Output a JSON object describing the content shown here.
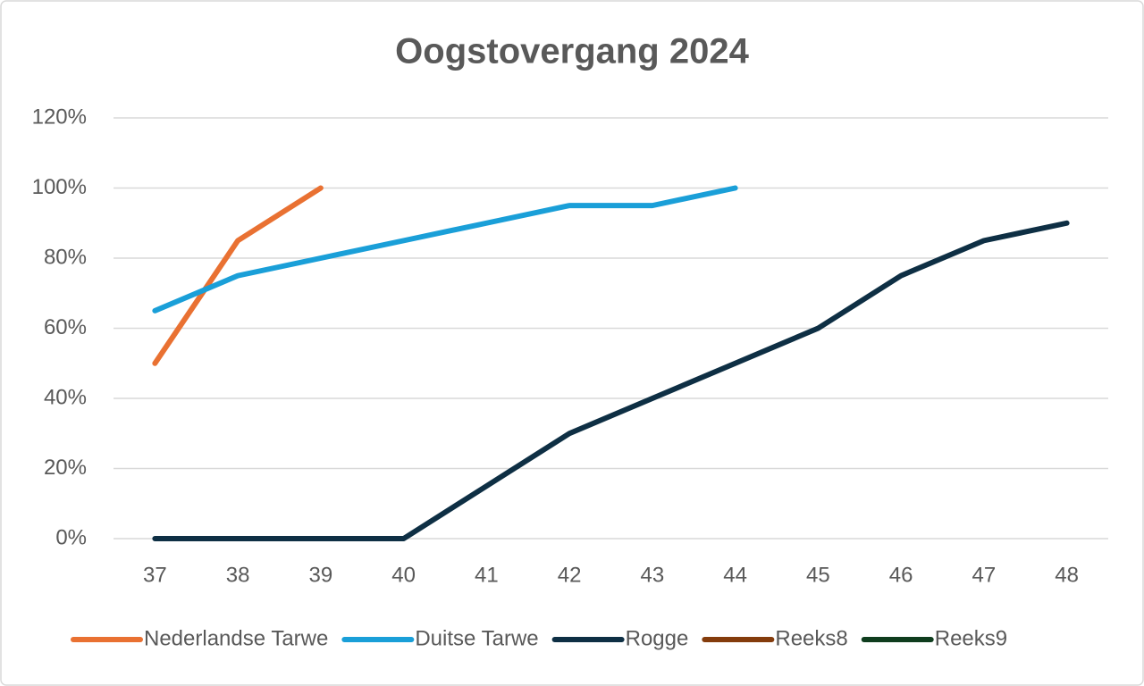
{
  "chart_data": {
    "type": "line",
    "title": "Oogstovergang 2024",
    "categories": [
      "37",
      "38",
      "39",
      "40",
      "41",
      "42",
      "43",
      "44",
      "45",
      "46",
      "47",
      "48"
    ],
    "series": [
      {
        "name": "Nederlandse Tarwe",
        "color": "#e97132",
        "values": [
          50,
          85,
          100,
          null,
          null,
          null,
          null,
          null,
          null,
          null,
          null,
          null
        ]
      },
      {
        "name": "Duitse Tarwe",
        "color": "#1a9fd8",
        "values": [
          65,
          75,
          80,
          85,
          90,
          95,
          95,
          100,
          null,
          null,
          null,
          null
        ]
      },
      {
        "name": "Rogge",
        "color": "#0e2f44",
        "values": [
          0,
          0,
          0,
          0,
          15,
          30,
          40,
          50,
          60,
          75,
          85,
          90
        ]
      },
      {
        "name": "Reeks8",
        "color": "#843c0c",
        "values": [
          null,
          null,
          null,
          null,
          null,
          null,
          null,
          null,
          null,
          null,
          null,
          null
        ]
      },
      {
        "name": "Reeks9",
        "color": "#0f3d1e",
        "values": [
          null,
          null,
          null,
          null,
          null,
          null,
          null,
          null,
          null,
          null,
          null,
          null
        ]
      }
    ],
    "ylim": [
      0,
      120
    ],
    "yticks": [
      {
        "value": 0,
        "label": "0%"
      },
      {
        "value": 20,
        "label": "20%"
      },
      {
        "value": 40,
        "label": "40%"
      },
      {
        "value": 60,
        "label": "60%"
      },
      {
        "value": 80,
        "label": "80%"
      },
      {
        "value": 100,
        "label": "100%"
      },
      {
        "value": 120,
        "label": "120%"
      }
    ],
    "grid": true,
    "legend": "bottom"
  }
}
